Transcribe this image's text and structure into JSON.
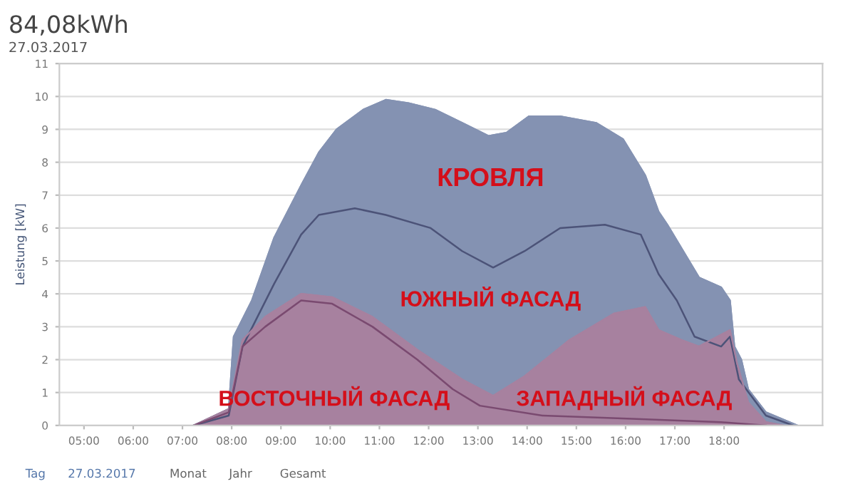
{
  "chart_data": {
    "type": "area",
    "title": "84,08kWh",
    "subtitle": "27.03.2017",
    "ylabel": "Leistung [kW]",
    "xlim": [
      4.5,
      20
    ],
    "ylim": [
      0,
      11
    ],
    "xticks": [
      {
        "value": 5,
        "label": "05:00"
      },
      {
        "value": 6,
        "label": "06:00"
      },
      {
        "value": 7,
        "label": "07:00"
      },
      {
        "value": 8,
        "label": "08:00"
      },
      {
        "value": 9,
        "label": "09:00"
      },
      {
        "value": 10,
        "label": "10:00"
      },
      {
        "value": 11,
        "label": "11:00"
      },
      {
        "value": 12,
        "label": "12:00"
      },
      {
        "value": 13,
        "label": "13:00"
      },
      {
        "value": 14,
        "label": "14:00"
      },
      {
        "value": 15,
        "label": "15:00"
      },
      {
        "value": 16,
        "label": "16:00"
      },
      {
        "value": 17,
        "label": "17:00"
      },
      {
        "value": 18,
        "label": "18:00"
      }
    ],
    "yticks": [
      0,
      1,
      2,
      3,
      4,
      5,
      6,
      7,
      8,
      9,
      10,
      11
    ],
    "grid": "y",
    "series": [
      {
        "color": "#8492b2",
        "x": [
          7.23,
          7.94,
          8.04,
          8.41,
          8.86,
          9.41,
          9.77,
          10.13,
          10.67,
          11.13,
          11.59,
          12.13,
          12.68,
          13.22,
          13.58,
          14.04,
          14.67,
          15.4,
          15.95,
          16.4,
          16.67,
          16.85,
          17.13,
          17.49,
          17.94,
          18.12,
          18.21,
          18.35,
          18.49,
          18.85,
          19.49
        ],
        "values": [
          0,
          0.5,
          2.7,
          3.8,
          5.7,
          7.3,
          8.3,
          9.0,
          9.6,
          9.9,
          9.8,
          9.6,
          9.2,
          8.8,
          8.9,
          9.4,
          9.4,
          9.2,
          8.7,
          7.6,
          6.5,
          6.1,
          5.4,
          4.5,
          4.2,
          3.8,
          2.4,
          2.0,
          1.1,
          0.4,
          0
        ]
      },
      {
        "type": "line",
        "color": "#4c5378",
        "x": [
          7.23,
          7.94,
          8.22,
          8.86,
          9.41,
          9.77,
          10.5,
          11.13,
          12.04,
          12.68,
          13.31,
          13.95,
          14.67,
          15.58,
          16.31,
          16.67,
          17.04,
          17.4,
          17.94,
          18.12,
          18.3,
          18.85,
          19.4
        ],
        "values": [
          0,
          0.3,
          2.4,
          4.3,
          5.8,
          6.4,
          6.6,
          6.4,
          6.0,
          5.3,
          4.8,
          5.3,
          6.0,
          6.1,
          5.8,
          4.6,
          3.8,
          2.7,
          2.4,
          2.7,
          1.4,
          0.3,
          0
        ]
      },
      {
        "type": "area",
        "color": "#a7819f",
        "x": [
          7.23,
          7.94,
          8.22,
          8.68,
          9.41,
          10.04,
          10.86,
          11.77,
          12.68,
          13.31,
          13.95,
          14.86,
          15.76,
          16.4,
          16.67,
          17.13,
          17.49,
          18.12,
          18.26,
          18.49,
          18.85,
          19.2
        ],
        "values": [
          0,
          0.5,
          2.6,
          3.3,
          4.0,
          3.9,
          3.3,
          2.3,
          1.4,
          0.9,
          1.5,
          2.6,
          3.4,
          3.6,
          2.9,
          2.6,
          2.4,
          2.9,
          1.9,
          0.7,
          0.1,
          0
        ]
      },
      {
        "type": "line",
        "color": "#7a4a70",
        "x": [
          7.23,
          7.94,
          8.22,
          8.68,
          9.41,
          10.04,
          10.86,
          11.77,
          12.49,
          13.04,
          14.31,
          16.13,
          17.94,
          18.85
        ],
        "values": [
          0,
          0.4,
          2.4,
          3.0,
          3.8,
          3.7,
          3.0,
          2.0,
          1.1,
          0.6,
          0.3,
          0.2,
          0.1,
          0
        ]
      }
    ],
    "annotations": [
      "КРОВЛЯ",
      "ЮЖНЫЙ ФАСАД",
      "ВОСТОЧНЫЙ ФАСАД",
      "ЗАПАДНЫЙ ФАСАД",
      "Tag",
      "27.03.2017",
      "Monat",
      "Jahr",
      "Gesamt"
    ]
  }
}
